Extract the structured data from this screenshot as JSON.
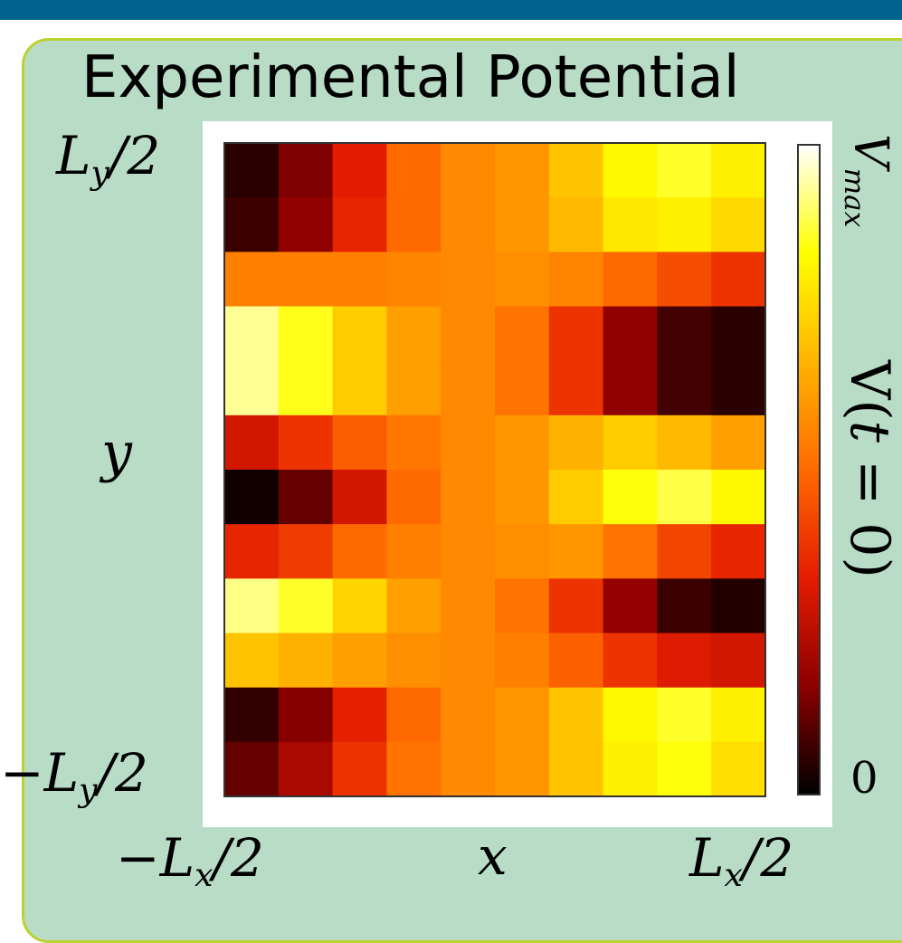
{
  "chart_data": {
    "type": "heatmap",
    "title": "Experimental Potential",
    "xlabel": "x",
    "ylabel": "y",
    "x_tick_labels": [
      "−L_x/2",
      "L_x/2"
    ],
    "y_tick_labels": [
      "L_y/2",
      "−L_y/2"
    ],
    "colorbar": {
      "label": "V(t = 0)",
      "min_label": "0",
      "max_label": "V_max",
      "colormap": "hot",
      "colors": [
        "#000000",
        "#8c0000",
        "#e41d00",
        "#ff6a00",
        "#ffb400",
        "#ffff00",
        "#ffffff"
      ]
    },
    "columns": 10,
    "rows": 12,
    "values": [
      [
        0.05,
        0.15,
        0.33,
        0.5,
        0.57,
        0.6,
        0.7,
        0.82,
        0.86,
        0.8
      ],
      [
        0.07,
        0.17,
        0.35,
        0.5,
        0.57,
        0.6,
        0.68,
        0.78,
        0.8,
        0.75
      ],
      [
        0.55,
        0.55,
        0.55,
        0.56,
        0.57,
        0.58,
        0.56,
        0.5,
        0.44,
        0.38
      ],
      [
        0.93,
        0.85,
        0.72,
        0.62,
        0.57,
        0.52,
        0.38,
        0.17,
        0.08,
        0.05
      ],
      [
        0.93,
        0.85,
        0.72,
        0.62,
        0.57,
        0.52,
        0.38,
        0.17,
        0.08,
        0.05
      ],
      [
        0.3,
        0.38,
        0.47,
        0.53,
        0.57,
        0.6,
        0.66,
        0.72,
        0.68,
        0.62
      ],
      [
        0.02,
        0.12,
        0.3,
        0.5,
        0.57,
        0.6,
        0.72,
        0.84,
        0.88,
        0.82
      ],
      [
        0.35,
        0.4,
        0.5,
        0.55,
        0.57,
        0.58,
        0.6,
        0.52,
        0.42,
        0.35
      ],
      [
        0.92,
        0.86,
        0.74,
        0.62,
        0.57,
        0.52,
        0.38,
        0.18,
        0.07,
        0.04
      ],
      [
        0.7,
        0.66,
        0.62,
        0.58,
        0.57,
        0.55,
        0.48,
        0.38,
        0.32,
        0.3
      ],
      [
        0.06,
        0.16,
        0.34,
        0.5,
        0.57,
        0.6,
        0.7,
        0.82,
        0.86,
        0.8
      ],
      [
        0.12,
        0.22,
        0.38,
        0.52,
        0.57,
        0.6,
        0.7,
        0.8,
        0.84,
        0.76
      ]
    ]
  }
}
